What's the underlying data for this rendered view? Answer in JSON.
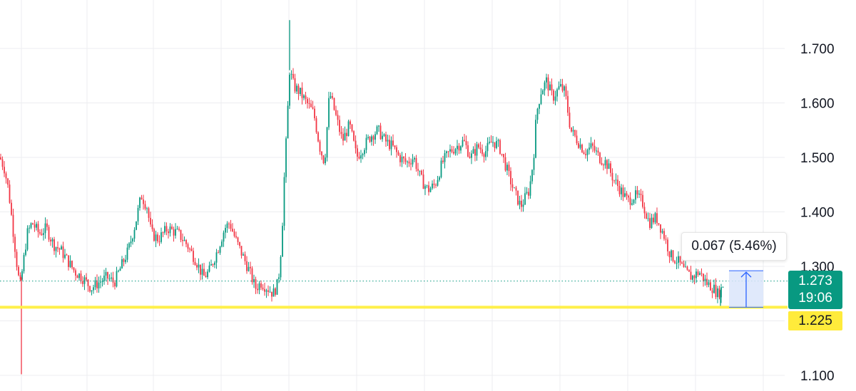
{
  "chart_data": {
    "type": "candlestick",
    "y_axis": {
      "ticks": [
        "1.100",
        "1.300",
        "1.400",
        "1.500",
        "1.600",
        "1.700"
      ],
      "range": [
        1.09,
        1.79
      ],
      "partial_top_tick": "1.800"
    },
    "colors": {
      "up": "#089981",
      "down": "#f23645",
      "horizontal_level": "#fff04a",
      "measure_fill": "#dbe5fa",
      "measure_border": "#2962ff",
      "grid": "#ecedf0",
      "last_price_line": "#089981"
    },
    "last_price": {
      "value": "1.273",
      "countdown": "19:06",
      "y": 1.273
    },
    "horizontal_level": {
      "value": "1.225",
      "y": 1.225
    },
    "measurement": {
      "label": "0.067 (5.46%)",
      "from": 1.225,
      "to": 1.292
    },
    "segments": [
      [
        0,
        1.5
      ],
      [
        6,
        1.48
      ],
      [
        12,
        1.44
      ],
      [
        18,
        1.37
      ],
      [
        24,
        1.3
      ],
      [
        28,
        1.26
      ],
      [
        33,
        1.31
      ],
      [
        38,
        1.36
      ],
      [
        45,
        1.38
      ],
      [
        55,
        1.36
      ],
      [
        65,
        1.37
      ],
      [
        75,
        1.34
      ],
      [
        85,
        1.33
      ],
      [
        95,
        1.31
      ],
      [
        105,
        1.29
      ],
      [
        115,
        1.28
      ],
      [
        128,
        1.26
      ],
      [
        138,
        1.27
      ],
      [
        150,
        1.28
      ],
      [
        160,
        1.27
      ],
      [
        170,
        1.3
      ],
      [
        180,
        1.33
      ],
      [
        190,
        1.38
      ],
      [
        198,
        1.43
      ],
      [
        206,
        1.41
      ],
      [
        212,
        1.36
      ],
      [
        222,
        1.35
      ],
      [
        235,
        1.37
      ],
      [
        250,
        1.36
      ],
      [
        262,
        1.34
      ],
      [
        275,
        1.31
      ],
      [
        285,
        1.28
      ],
      [
        293,
        1.29
      ],
      [
        305,
        1.33
      ],
      [
        315,
        1.37
      ],
      [
        322,
        1.38
      ],
      [
        330,
        1.35
      ],
      [
        340,
        1.32
      ],
      [
        350,
        1.29
      ],
      [
        358,
        1.26
      ],
      [
        366,
        1.27
      ],
      [
        375,
        1.26
      ],
      [
        383,
        1.25
      ],
      [
        390,
        1.27
      ],
      [
        395,
        1.35
      ],
      [
        398,
        1.45
      ],
      [
        402,
        1.55
      ],
      [
        406,
        1.66
      ],
      [
        412,
        1.63
      ],
      [
        420,
        1.62
      ],
      [
        430,
        1.6
      ],
      [
        440,
        1.58
      ],
      [
        448,
        1.52
      ],
      [
        455,
        1.49
      ],
      [
        462,
        1.62
      ],
      [
        470,
        1.58
      ],
      [
        480,
        1.53
      ],
      [
        490,
        1.56
      ],
      [
        500,
        1.5
      ],
      [
        510,
        1.52
      ],
      [
        520,
        1.54
      ],
      [
        530,
        1.55
      ],
      [
        540,
        1.53
      ],
      [
        550,
        1.52
      ],
      [
        560,
        1.5
      ],
      [
        570,
        1.49
      ],
      [
        580,
        1.5
      ],
      [
        590,
        1.46
      ],
      [
        600,
        1.44
      ],
      [
        610,
        1.45
      ],
      [
        620,
        1.49
      ],
      [
        630,
        1.51
      ],
      [
        640,
        1.52
      ],
      [
        650,
        1.53
      ],
      [
        660,
        1.5
      ],
      [
        670,
        1.52
      ],
      [
        680,
        1.51
      ],
      [
        690,
        1.53
      ],
      [
        700,
        1.52
      ],
      [
        710,
        1.48
      ],
      [
        720,
        1.44
      ],
      [
        730,
        1.41
      ],
      [
        742,
        1.44
      ],
      [
        748,
        1.5
      ],
      [
        752,
        1.58
      ],
      [
        758,
        1.62
      ],
      [
        766,
        1.64
      ],
      [
        775,
        1.61
      ],
      [
        785,
        1.63
      ],
      [
        792,
        1.62
      ],
      [
        800,
        1.55
      ],
      [
        810,
        1.53
      ],
      [
        820,
        1.51
      ],
      [
        830,
        1.52
      ],
      [
        840,
        1.5
      ],
      [
        850,
        1.49
      ],
      [
        860,
        1.46
      ],
      [
        870,
        1.44
      ],
      [
        880,
        1.42
      ],
      [
        890,
        1.43
      ],
      [
        900,
        1.42
      ],
      [
        910,
        1.38
      ],
      [
        920,
        1.39
      ],
      [
        930,
        1.36
      ],
      [
        940,
        1.32
      ],
      [
        950,
        1.31
      ],
      [
        960,
        1.29
      ],
      [
        970,
        1.28
      ],
      [
        980,
        1.29
      ],
      [
        990,
        1.27
      ],
      [
        1000,
        1.26
      ],
      [
        1006,
        1.25
      ],
      [
        1012,
        1.26
      ],
      [
        1015,
        1.273
      ]
    ],
    "spikes": [
      {
        "x": 30,
        "low": 1.102
      },
      {
        "x": 406,
        "high": 1.752
      },
      {
        "x": 1010,
        "low": 1.225
      }
    ]
  }
}
